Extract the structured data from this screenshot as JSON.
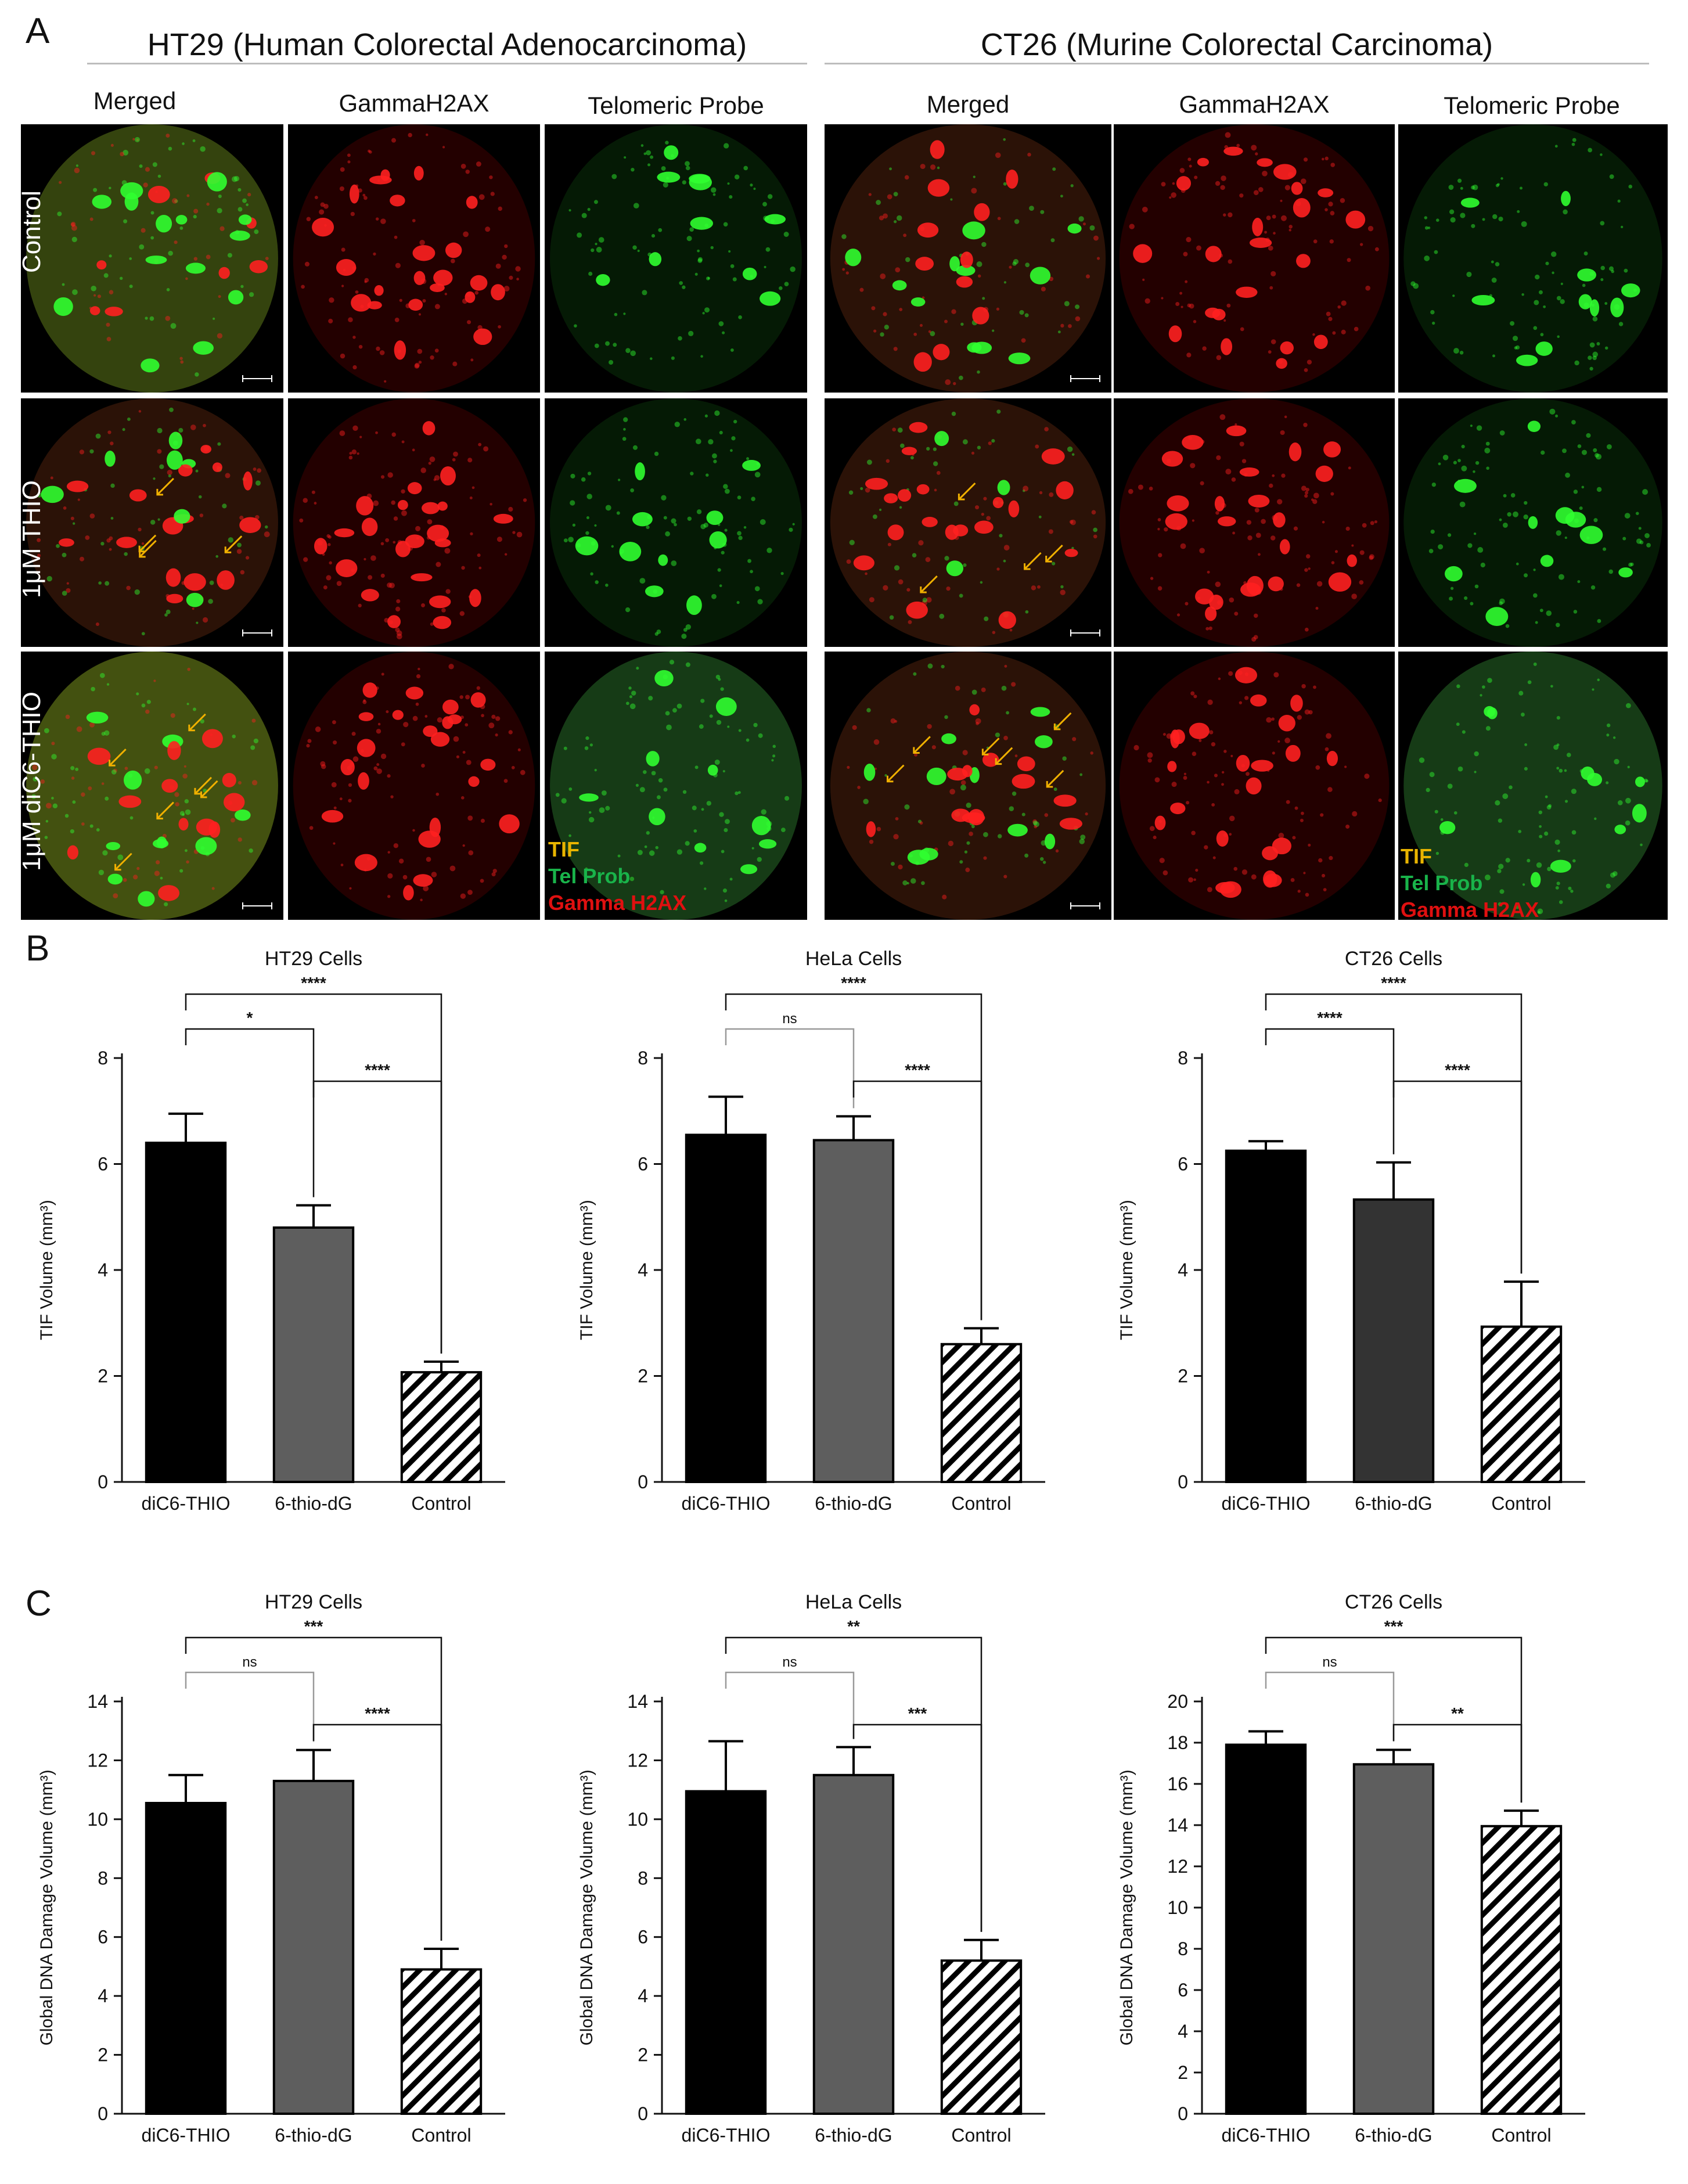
{
  "panelA": {
    "letter": "A",
    "left_title": "HT29 (Human Colorectal Adenocarcinoma)",
    "right_title": "CT26 (Murine Colorectal Carcinoma)",
    "col_merged": "Merged",
    "col_gamma": "GammaH2AX",
    "col_telo": "Telomeric Probe",
    "row_control": "Control",
    "row_thio": "1μM THIO",
    "row_dic6": "1μM  diC6-THIO",
    "legend": {
      "tif": "TIF",
      "tel": "Tel Prob",
      "gamma": "Gamma H2AX"
    },
    "colors": {
      "tif": "#e8b400",
      "tel": "#19b34a",
      "gamma": "#e01010",
      "red_signal": "#ff2020",
      "green_signal": "#30ff30"
    }
  },
  "panelB": {
    "letter": "B"
  },
  "panelC": {
    "letter": "C"
  },
  "chart_data": [
    {
      "type": "bar",
      "title": "HT29 Cells",
      "ylabel": "TIF Volume (mm³)",
      "ylim": [
        0,
        8
      ],
      "yticks": [
        0,
        2,
        4,
        6,
        8
      ],
      "categories": [
        "diC6-THIO",
        "6-thio-dG",
        "Control"
      ],
      "values": [
        6.4,
        4.8,
        2.07
      ],
      "errors": [
        0.55,
        0.42,
        0.2
      ],
      "fills": [
        "black",
        "gray",
        "hatch"
      ],
      "brackets": [
        {
          "from": 0,
          "to": 1,
          "label": "*"
        },
        {
          "from": 0,
          "to": 2,
          "label": "****"
        },
        {
          "from": 1,
          "to": 2,
          "label": "****"
        }
      ]
    },
    {
      "type": "bar",
      "title": "HeLa Cells",
      "ylabel": "TIF Volume (mm³)",
      "ylim": [
        0,
        8
      ],
      "yticks": [
        0,
        2,
        4,
        6,
        8
      ],
      "categories": [
        "diC6-THIO",
        "6-thio-dG",
        "Control"
      ],
      "values": [
        6.55,
        6.45,
        2.6
      ],
      "errors": [
        0.72,
        0.45,
        0.3
      ],
      "fills": [
        "black",
        "gray",
        "hatch"
      ],
      "brackets": [
        {
          "from": 0,
          "to": 1,
          "label": "ns"
        },
        {
          "from": 0,
          "to": 2,
          "label": "****"
        },
        {
          "from": 1,
          "to": 2,
          "label": "****"
        }
      ]
    },
    {
      "type": "bar",
      "title": "CT26 Cells",
      "ylabel": "TIF Volume (mm³)",
      "ylim": [
        0,
        8
      ],
      "yticks": [
        0,
        2,
        4,
        6,
        8
      ],
      "categories": [
        "diC6-THIO",
        "6-thio-dG",
        "Control"
      ],
      "values": [
        6.25,
        5.33,
        2.93
      ],
      "errors": [
        0.18,
        0.7,
        0.85
      ],
      "fills": [
        "black",
        "darkgray",
        "hatch"
      ],
      "brackets": [
        {
          "from": 0,
          "to": 1,
          "label": "****"
        },
        {
          "from": 0,
          "to": 2,
          "label": "****"
        },
        {
          "from": 1,
          "to": 2,
          "label": "****"
        }
      ]
    },
    {
      "type": "bar",
      "title": "HT29 Cells",
      "ylabel": "Global DNA Damage Volume (mm³)",
      "ylim": [
        0,
        14
      ],
      "yticks": [
        0,
        2,
        4,
        6,
        8,
        10,
        12,
        14
      ],
      "categories": [
        "diC6-THIO",
        "6-thio-dG",
        "Control"
      ],
      "values": [
        10.55,
        11.3,
        4.9
      ],
      "errors": [
        0.95,
        1.05,
        0.7
      ],
      "fills": [
        "black",
        "gray",
        "hatch"
      ],
      "brackets": [
        {
          "from": 0,
          "to": 1,
          "label": "ns"
        },
        {
          "from": 0,
          "to": 2,
          "label": "***"
        },
        {
          "from": 1,
          "to": 2,
          "label": "****"
        }
      ]
    },
    {
      "type": "bar",
      "title": "HeLa Cells",
      "ylabel": "Global DNA Damage Volume (mm³)",
      "ylim": [
        0,
        14
      ],
      "yticks": [
        0,
        2,
        4,
        6,
        8,
        10,
        12,
        14
      ],
      "categories": [
        "diC6-THIO",
        "6-thio-dG",
        "Control"
      ],
      "values": [
        10.95,
        11.5,
        5.2
      ],
      "errors": [
        1.7,
        0.95,
        0.7
      ],
      "fills": [
        "black",
        "gray",
        "hatch"
      ],
      "brackets": [
        {
          "from": 0,
          "to": 1,
          "label": "ns"
        },
        {
          "from": 0,
          "to": 2,
          "label": "**"
        },
        {
          "from": 1,
          "to": 2,
          "label": "***"
        }
      ]
    },
    {
      "type": "bar",
      "title": "CT26 Cells",
      "ylabel": "Global DNA Damage Volume (mm³)",
      "ylim": [
        0,
        20
      ],
      "yticks": [
        0,
        2,
        4,
        6,
        8,
        10,
        12,
        14,
        16,
        18,
        20
      ],
      "categories": [
        "diC6-THIO",
        "6-thio-dG",
        "Control"
      ],
      "values": [
        17.9,
        16.95,
        13.95
      ],
      "errors": [
        0.65,
        0.7,
        0.75
      ],
      "fills": [
        "black",
        "gray",
        "hatch"
      ],
      "brackets": [
        {
          "from": 0,
          "to": 1,
          "label": "ns"
        },
        {
          "from": 0,
          "to": 2,
          "label": "***"
        },
        {
          "from": 1,
          "to": 2,
          "label": "**"
        }
      ]
    }
  ]
}
